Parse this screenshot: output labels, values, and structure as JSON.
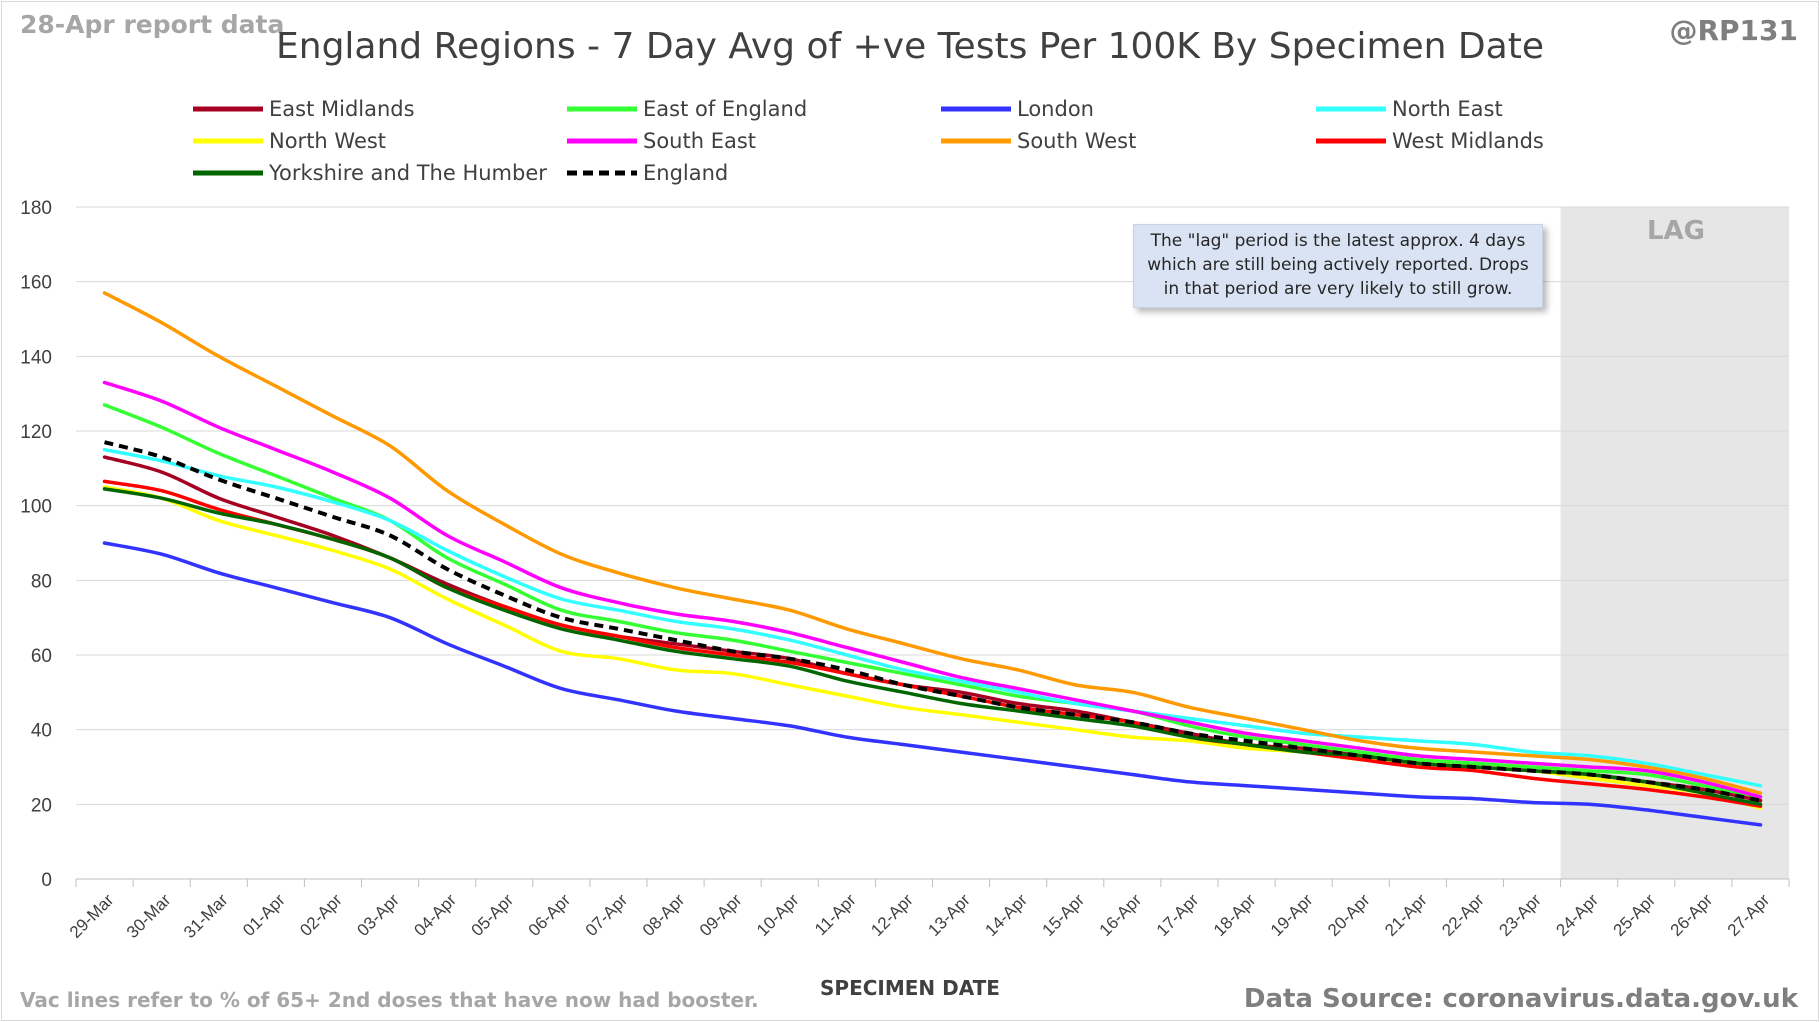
{
  "header": {
    "report_date": "28-Apr report data",
    "handle": "@RP131",
    "title": "England Regions - 7 Day Avg of +ve Tests Per 100K By Specimen Date"
  },
  "footer": {
    "note": "Vac lines refer to % of 65+ 2nd doses that have now had booster.",
    "source": "Data Source: coronavirus.data.gov.uk"
  },
  "annotations": {
    "lag_note": "The \"lag\" period is the latest approx. 4 days which are still being actively reported. Drops in that period are very likely to still grow.",
    "lag_label": "LAG",
    "lag_band_color": "#e6e6e6"
  },
  "chart_data": {
    "type": "line",
    "xlabel": "SPECIMEN DATE",
    "ylabel": "",
    "ylim": [
      0,
      180
    ],
    "yticks": [
      0,
      20,
      40,
      60,
      80,
      100,
      120,
      140,
      160,
      180
    ],
    "grid": true,
    "legend_position": "top",
    "lag_range": [
      "24-Apr",
      "27-Apr"
    ],
    "categories": [
      "29-Mar",
      "30-Mar",
      "31-Mar",
      "01-Apr",
      "02-Apr",
      "03-Apr",
      "04-Apr",
      "05-Apr",
      "06-Apr",
      "07-Apr",
      "08-Apr",
      "09-Apr",
      "10-Apr",
      "11-Apr",
      "12-Apr",
      "13-Apr",
      "14-Apr",
      "15-Apr",
      "16-Apr",
      "17-Apr",
      "18-Apr",
      "19-Apr",
      "20-Apr",
      "21-Apr",
      "22-Apr",
      "23-Apr",
      "24-Apr",
      "25-Apr",
      "26-Apr",
      "27-Apr"
    ],
    "series": [
      {
        "name": "East Midlands",
        "color": "#a50021",
        "dashed": false,
        "values": [
          113,
          109,
          102,
          97,
          92,
          86,
          79,
          73,
          68,
          65,
          63,
          61,
          59,
          55,
          52,
          50,
          47,
          45,
          42,
          39,
          36,
          35,
          33,
          31,
          30,
          29,
          28,
          26,
          24,
          21
        ]
      },
      {
        "name": "East of England",
        "color": "#33ff33",
        "dashed": false,
        "values": [
          127,
          121,
          114,
          108,
          102,
          96,
          86,
          79,
          72,
          69,
          66,
          64,
          61,
          58,
          55,
          52,
          49,
          47,
          45,
          41,
          38,
          36,
          34,
          32,
          31,
          30,
          29,
          28,
          25,
          22
        ]
      },
      {
        "name": "London",
        "color": "#3333ff",
        "dashed": false,
        "values": [
          90,
          87,
          82,
          78,
          74,
          70,
          63,
          57,
          51,
          48,
          45,
          43,
          41,
          38,
          36,
          34,
          32,
          30,
          28,
          26,
          25,
          24,
          23,
          22,
          21.5,
          20.5,
          20,
          18.5,
          16.5,
          14.5
        ]
      },
      {
        "name": "North East",
        "color": "#33ffff",
        "dashed": false,
        "values": [
          115,
          112,
          108,
          105,
          101,
          96,
          88,
          81,
          75,
          72,
          69,
          67,
          64,
          60,
          56,
          53,
          50,
          47,
          45,
          43,
          41,
          39,
          38,
          37,
          36,
          34,
          33,
          31,
          28,
          25
        ]
      },
      {
        "name": "North West",
        "color": "#ffff00",
        "dashed": false,
        "values": [
          105,
          102,
          96,
          92,
          88,
          83,
          75,
          68,
          61,
          59,
          56,
          55,
          52,
          49,
          46,
          44,
          42,
          40,
          38,
          37,
          35,
          34,
          32,
          31,
          30,
          29,
          27,
          25,
          23,
          19
        ]
      },
      {
        "name": "South East",
        "color": "#ff00ff",
        "dashed": false,
        "values": [
          133,
          128,
          121,
          115,
          109,
          102,
          92,
          85,
          78,
          74,
          71,
          69,
          66,
          62,
          58,
          54,
          51,
          48,
          45,
          42,
          39,
          37,
          35,
          33,
          32,
          31,
          30,
          29,
          26,
          22
        ]
      },
      {
        "name": "South West",
        "color": "#ff9900",
        "dashed": false,
        "values": [
          157,
          149,
          140,
          132,
          124,
          116,
          104,
          95,
          87,
          82,
          78,
          75,
          72,
          67,
          63,
          59,
          56,
          52,
          50,
          46,
          43,
          40,
          37,
          35,
          34,
          33,
          32,
          30,
          27,
          23
        ]
      },
      {
        "name": "West Midlands",
        "color": "#ff0000",
        "dashed": false,
        "values": [
          106.5,
          104,
          99,
          95,
          91,
          86,
          78,
          73,
          68,
          65,
          62,
          60,
          58,
          55,
          52,
          49,
          46,
          44,
          42,
          38,
          36,
          34,
          32,
          30,
          29,
          27,
          25.5,
          24,
          22,
          19.5
        ]
      },
      {
        "name": "Yorkshire and The Humber",
        "color": "#006600",
        "dashed": false,
        "values": [
          104.5,
          102,
          98,
          95,
          91,
          86,
          78,
          72,
          67,
          64,
          61,
          59,
          57,
          53,
          50,
          47,
          45,
          43,
          41,
          38,
          36,
          34,
          33,
          31,
          30,
          29,
          28,
          26,
          23,
          20
        ]
      },
      {
        "name": "England",
        "color": "#000000",
        "dashed": true,
        "values": [
          117,
          113,
          107,
          102,
          97,
          92,
          83,
          76,
          70,
          67,
          64,
          61,
          59,
          56,
          52,
          49,
          46,
          44,
          42,
          39,
          37,
          35,
          33,
          31,
          30,
          29,
          28,
          26,
          24,
          21
        ]
      }
    ]
  }
}
